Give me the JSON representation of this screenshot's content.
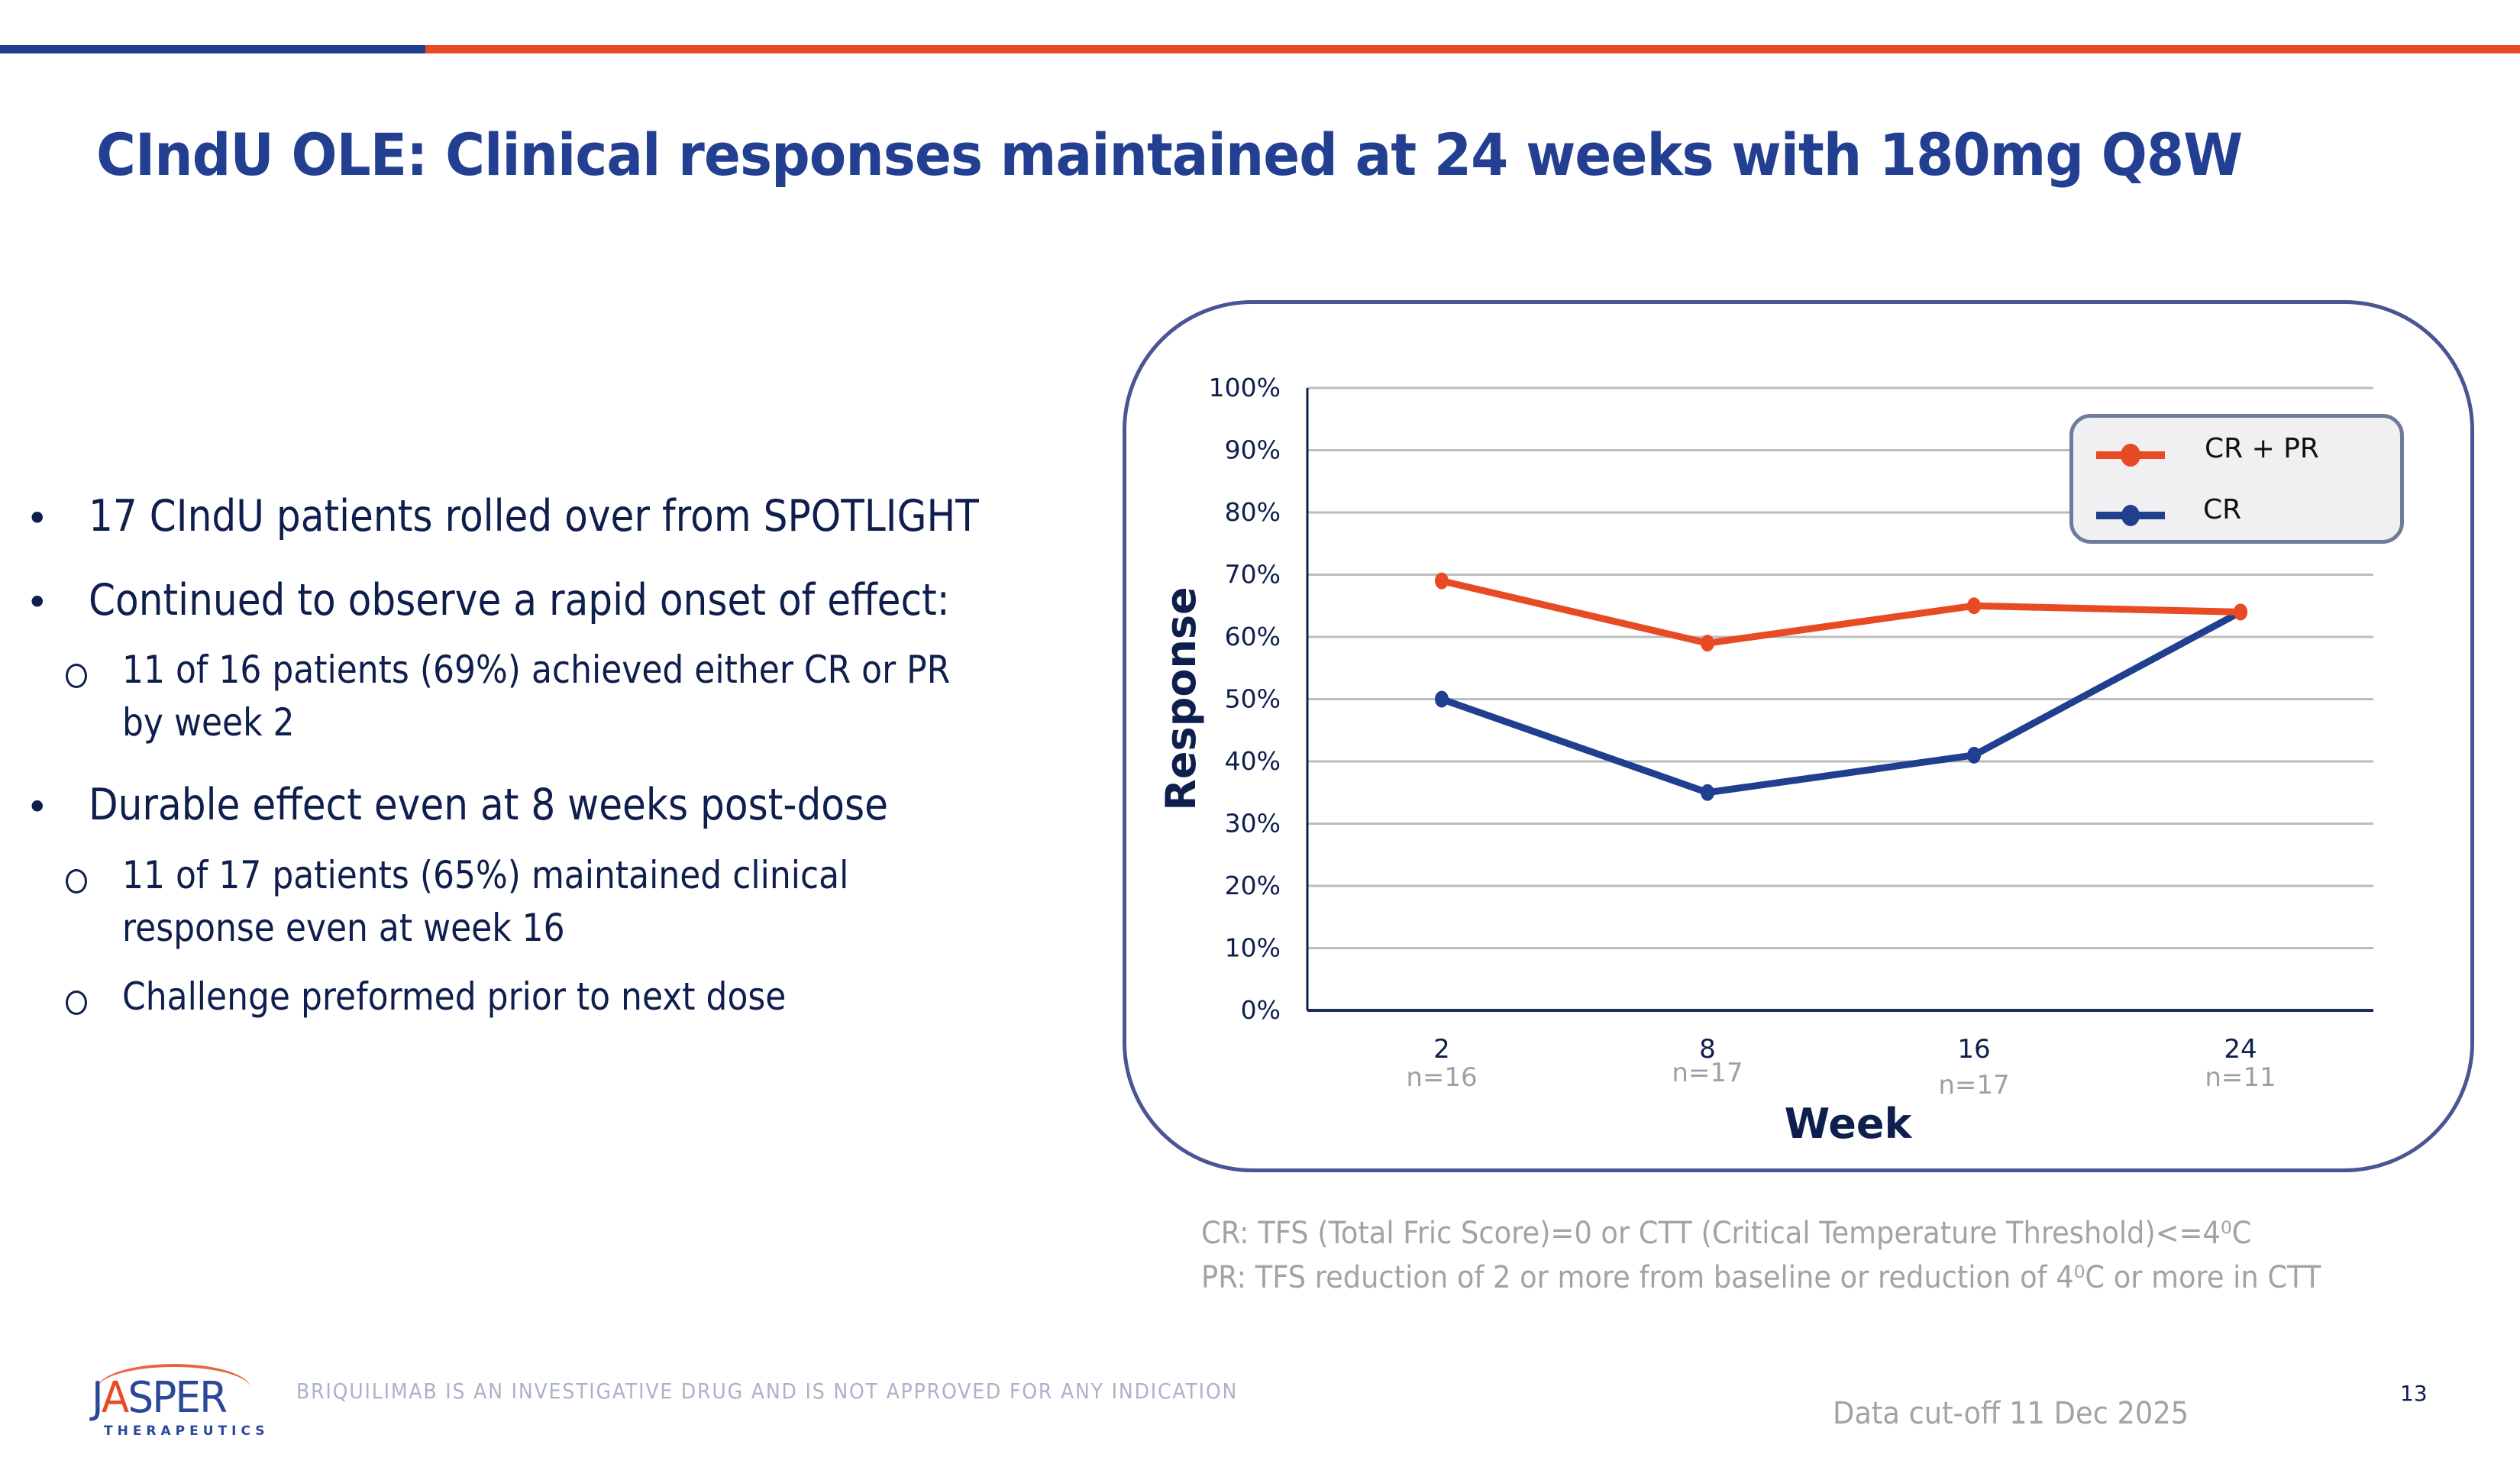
{
  "slide": {
    "title": "CIndU OLE: Clinical responses maintained at 24 weeks with 180mg Q8W",
    "colors": {
      "brand_blue": "#213f8f",
      "brand_orange": "#e84a24",
      "text_navy": "#0f1f4d",
      "muted_gray": "#a3a3a3"
    },
    "bullets": [
      {
        "level": 1,
        "marker": "•",
        "text": "17 CIndU patients rolled over from SPOTLIGHT"
      },
      {
        "level": 1,
        "marker": "•",
        "text": "Continued to observe a rapid onset of effect:"
      },
      {
        "level": 2,
        "marker": "o",
        "lines": [
          "11 of 16 patients (69%) achieved either CR or PR",
          "by week 2"
        ]
      },
      {
        "level": 1,
        "marker": "•",
        "text": "Durable effect even at 8 weeks post-dose"
      },
      {
        "level": 2,
        "marker": "o",
        "lines": [
          "11 of 17 patients (65%) maintained clinical",
          "response even at week 16"
        ]
      },
      {
        "level": 2,
        "marker": "o",
        "lines": [
          "Challenge preformed prior to next dose"
        ]
      }
    ],
    "footnotes": [
      "CR: TFS (Total Fric Score)=0 or CTT (Critical Temperature Threshold)<=4⁰C",
      "PR: TFS reduction of 2 or more from baseline or reduction of 4⁰C or more in CTT"
    ],
    "disclaimer": "BRIQUILIMAB IS AN INVESTIGATIVE DRUG AND IS NOT APPROVED FOR ANY INDICATION",
    "data_cutoff": "Data cut-off 11 Dec 2025",
    "page_number": "13",
    "logo": {
      "name": "JASPER",
      "sub": "THERAPEUTICS"
    }
  },
  "chart_data": {
    "type": "line",
    "title": "",
    "xlabel": "Week",
    "ylabel": "Response",
    "categories": [
      "2",
      "8",
      "16",
      "24"
    ],
    "sample_sizes": [
      "n=16",
      "n=17",
      "n=17",
      "n=11"
    ],
    "ylim": [
      0,
      100
    ],
    "yticks": [
      0,
      10,
      20,
      30,
      40,
      50,
      60,
      70,
      80,
      90,
      100
    ],
    "ytick_labels": [
      "0%",
      "10%",
      "20%",
      "30%",
      "40%",
      "50%",
      "60%",
      "70%",
      "80%",
      "90%",
      "100%"
    ],
    "grid": true,
    "legend_position": "top-right",
    "series": [
      {
        "name": "CR + PR",
        "color": "#e84a24",
        "values": [
          69,
          59,
          65,
          64
        ]
      },
      {
        "name": "CR",
        "color": "#213f8f",
        "values": [
          50,
          35,
          41,
          64
        ]
      }
    ]
  }
}
